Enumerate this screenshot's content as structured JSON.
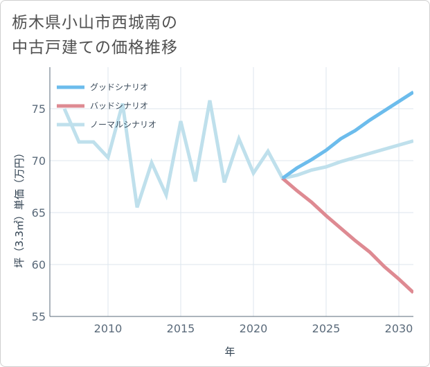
{
  "title": {
    "line1": "栃木県小山市西城南の",
    "line2": "中古戸建ての価格推移"
  },
  "colors": {
    "good": "#6cbcec",
    "bad": "#de8a92",
    "normal": "#bfe0ec",
    "grid": "#dce6ee",
    "axis": "#5a6a7a"
  },
  "chart_data": {
    "type": "line",
    "title": "栃木県小山市西城南の中古戸建ての価格推移",
    "xlabel": "年",
    "ylabel": "坪（3.3㎡）単価（万円）",
    "xlim": [
      2006,
      2031
    ],
    "ylim": [
      55,
      79
    ],
    "xticks": [
      2010,
      2015,
      2020,
      2025,
      2030
    ],
    "yticks": [
      55,
      60,
      65,
      70,
      75
    ],
    "xtick_labels": [
      "2010",
      "2015",
      "2020",
      "2025",
      "2030"
    ],
    "ytick_labels": [
      "55",
      "60",
      "65",
      "70",
      "75"
    ],
    "grid": true,
    "legend_position": "top-left",
    "series": [
      {
        "name": "グッドシナリオ",
        "key": "good",
        "x": [
          2022,
          2023,
          2024,
          2025,
          2026,
          2027,
          2028,
          2029,
          2030,
          2031
        ],
        "values": [
          68.3,
          69.3,
          70.1,
          71.0,
          72.1,
          72.9,
          73.9,
          74.8,
          75.7,
          76.6
        ]
      },
      {
        "name": "バッドシナリオ",
        "key": "bad",
        "x": [
          2022,
          2023,
          2024,
          2025,
          2026,
          2027,
          2028,
          2029,
          2030,
          2031
        ],
        "values": [
          68.3,
          67.1,
          66.0,
          64.7,
          63.5,
          62.3,
          61.2,
          59.8,
          58.6,
          57.3
        ]
      },
      {
        "name": "ノーマルシナリオ",
        "key": "normal",
        "x": [
          2007,
          2008,
          2009,
          2010,
          2011,
          2012,
          2013,
          2014,
          2015,
          2016,
          2017,
          2018,
          2019,
          2020,
          2021,
          2022,
          2023,
          2024,
          2025,
          2026,
          2027,
          2028,
          2029,
          2030,
          2031
        ],
        "values": [
          75.0,
          71.8,
          71.8,
          70.3,
          75.5,
          65.5,
          69.8,
          66.7,
          73.8,
          68.0,
          75.8,
          67.9,
          72.1,
          68.8,
          70.9,
          68.3,
          68.6,
          69.1,
          69.4,
          69.9,
          70.3,
          70.7,
          71.1,
          71.5,
          71.9
        ]
      }
    ]
  }
}
